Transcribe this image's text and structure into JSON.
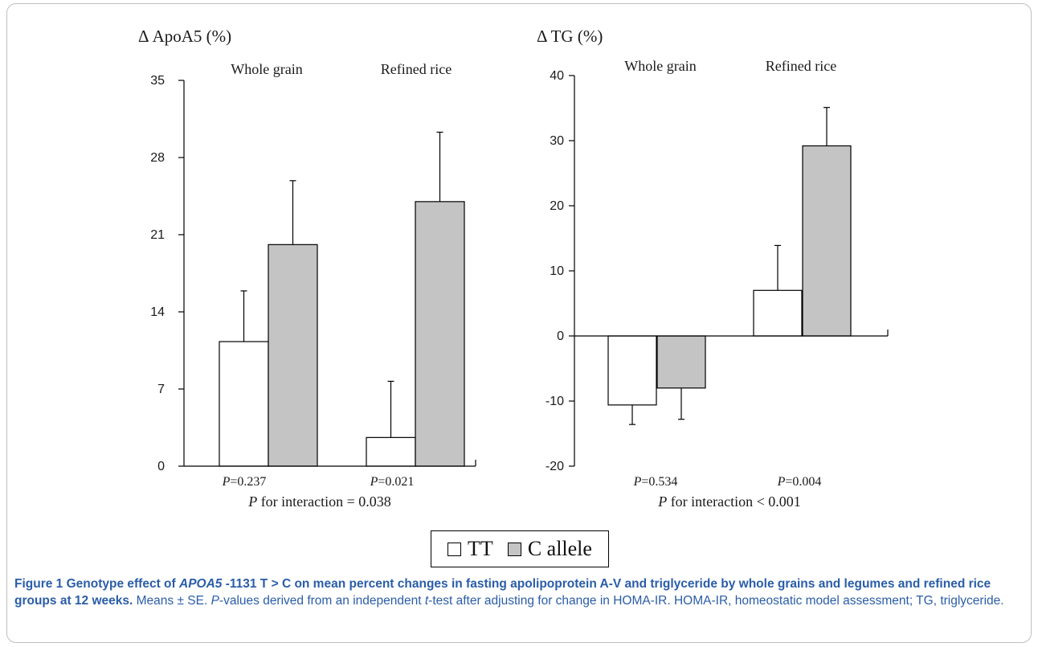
{
  "chart_data": [
    {
      "type": "bar",
      "ylabel": "Δ ApoA5 (%)",
      "groups": [
        "Whole grain",
        "Refined rice"
      ],
      "series": [
        {
          "name": "TT",
          "values": [
            11.3,
            2.6
          ],
          "errors": [
            4.6,
            5.1
          ]
        },
        {
          "name": "C allele",
          "values": [
            20.1,
            24.0
          ],
          "errors": [
            5.8,
            6.3
          ]
        }
      ],
      "ylim": [
        0,
        35
      ],
      "yticks": [
        "0",
        "7",
        "14",
        "21",
        "28",
        "35"
      ],
      "p_values": [
        "0.237",
        "0.021"
      ],
      "interaction": "= 0.038",
      "grid": false
    },
    {
      "type": "bar",
      "ylabel": "Δ TG (%)",
      "groups": [
        "Whole grain",
        "Refined rice"
      ],
      "series": [
        {
          "name": "TT",
          "values": [
            -10.6,
            7.0
          ],
          "errors": [
            3.0,
            6.9
          ]
        },
        {
          "name": "C allele",
          "values": [
            -8.0,
            29.2
          ],
          "errors": [
            4.8,
            5.9
          ]
        }
      ],
      "ylim": [
        -20,
        40
      ],
      "yticks": [
        "-20",
        "-10",
        "0",
        "10",
        "20",
        "30",
        "40"
      ],
      "p_values": [
        "0.534",
        "0.004"
      ],
      "interaction": "< 0.001",
      "grid": false
    }
  ],
  "p_prefix": "P",
  "p_eq": "=",
  "interaction_text": "for interaction",
  "legend": {
    "tt_label": "TT",
    "c_label": "C allele",
    "tt_color": "#ffffff",
    "c_color": "#c4c4c4"
  },
  "caption": {
    "fig_label": "Figure 1",
    "bold_part1": "Genotype effect of ",
    "gene": "APOA5",
    "bold_part2": " -1131 T > C on mean percent changes in fasting apolipoprotein A-V and triglyceride by whole grains and legumes and refined rice groups at 12 weeks.",
    "sentence1": "Means ± SE.",
    "p_italic": "P",
    "sentence2": "-values derived from an independent",
    "t_italic": "t",
    "sentence3": "-test after adjusting for change in HOMA-IR. HOMA-IR, homeostatic model assessment; TG, triglyceride."
  }
}
